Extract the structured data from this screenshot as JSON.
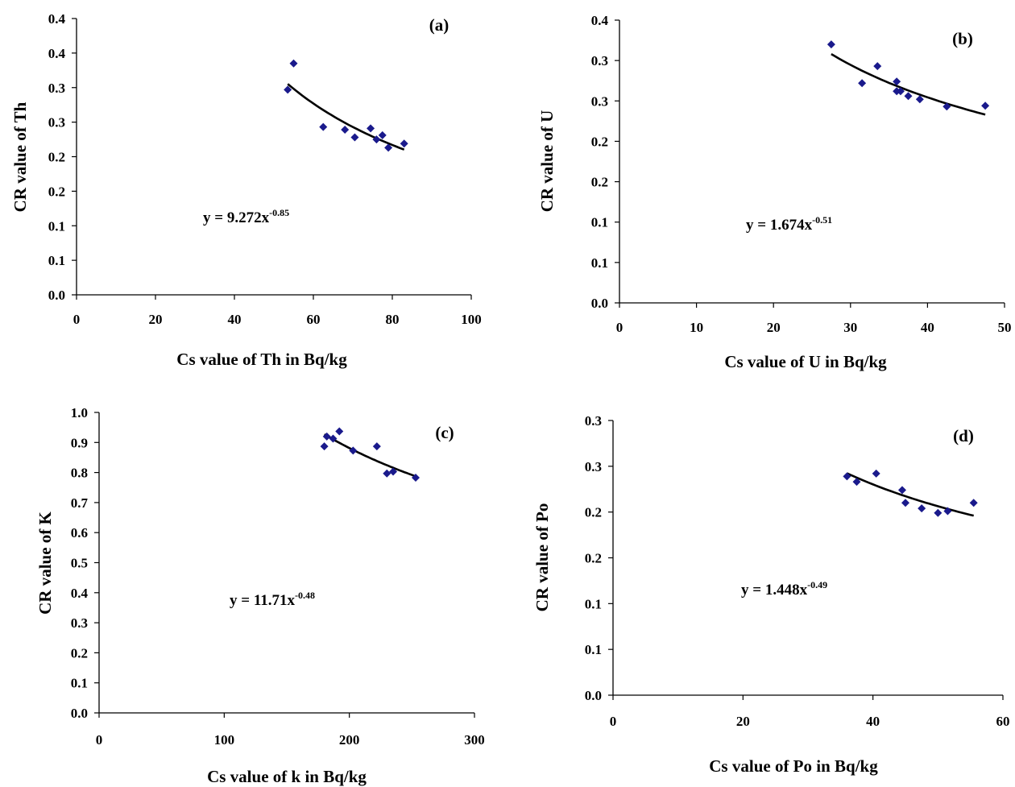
{
  "chart_data": [
    {
      "type": "scatter",
      "panel_label": "(a)",
      "xlabel": "Cs value of Th in Bq/kg",
      "ylabel": "CR value of Th",
      "xlim": [
        0,
        100
      ],
      "ylim": [
        0,
        0.4
      ],
      "xticks": [
        "0",
        "20",
        "40",
        "60",
        "80",
        "100"
      ],
      "yticks": [
        "0.0",
        "0.1",
        "0.1",
        "0.2",
        "0.2",
        "0.3",
        "0.3",
        "0.4",
        "0.4"
      ],
      "grid": false,
      "marker_color": "#1a1a8c",
      "trend": {
        "a": 9.272,
        "b": -0.85,
        "x_range": [
          53.5,
          83
        ],
        "equation": "y = 9.272x",
        "exponent": "-0.85"
      },
      "points": [
        {
          "x": 53.5,
          "y": 0.297
        },
        {
          "x": 55.0,
          "y": 0.335
        },
        {
          "x": 62.5,
          "y": 0.243
        },
        {
          "x": 68.0,
          "y": 0.239
        },
        {
          "x": 70.5,
          "y": 0.228
        },
        {
          "x": 74.5,
          "y": 0.241
        },
        {
          "x": 76.0,
          "y": 0.225
        },
        {
          "x": 77.5,
          "y": 0.231
        },
        {
          "x": 79.0,
          "y": 0.213
        },
        {
          "x": 83.0,
          "y": 0.219
        }
      ]
    },
    {
      "type": "scatter",
      "panel_label": "(b)",
      "xlabel": "Cs value of U in Bq/kg",
      "ylabel": "CR value of U",
      "xlim": [
        0,
        50
      ],
      "ylim": [
        0,
        0.35
      ],
      "xticks": [
        "0",
        "10",
        "20",
        "30",
        "40",
        "50"
      ],
      "yticks": [
        "0.0",
        "0.1",
        "0.1",
        "0.2",
        "0.2",
        "0.3",
        "0.3",
        "0.4"
      ],
      "grid": false,
      "marker_color": "#1a1a8c",
      "trend": {
        "a": 1.674,
        "b": -0.51,
        "x_range": [
          27.5,
          47.5
        ],
        "equation": "y = 1.674x",
        "exponent": "-0.51"
      },
      "points": [
        {
          "x": 27.5,
          "y": 0.32
        },
        {
          "x": 31.5,
          "y": 0.272
        },
        {
          "x": 33.5,
          "y": 0.293
        },
        {
          "x": 36.0,
          "y": 0.274
        },
        {
          "x": 36.5,
          "y": 0.262
        },
        {
          "x": 37.5,
          "y": 0.256
        },
        {
          "x": 39.0,
          "y": 0.252
        },
        {
          "x": 42.5,
          "y": 0.243
        },
        {
          "x": 47.5,
          "y": 0.244
        },
        {
          "x": 36.0,
          "y": 0.262
        }
      ]
    },
    {
      "type": "scatter",
      "panel_label": "(c)",
      "xlabel": "Cs value of k in Bq/kg",
      "ylabel": "CR value of K",
      "xlim": [
        0,
        300
      ],
      "ylim": [
        0,
        1.0
      ],
      "xticks": [
        "0",
        "100",
        "200",
        "300"
      ],
      "yticks": [
        "0.0",
        "0.1",
        "0.2",
        "0.3",
        "0.4",
        "0.5",
        "0.6",
        "0.7",
        "0.8",
        "0.9",
        "1.0"
      ],
      "grid": false,
      "marker_color": "#1a1a8c",
      "trend": {
        "a": 11.71,
        "b": -0.48,
        "x_range": [
          180,
          253
        ],
        "equation": "y = 11.71x",
        "exponent": "-0.48"
      },
      "points": [
        {
          "x": 180,
          "y": 0.887
        },
        {
          "x": 182,
          "y": 0.92
        },
        {
          "x": 187,
          "y": 0.913
        },
        {
          "x": 192,
          "y": 0.937
        },
        {
          "x": 203,
          "y": 0.873
        },
        {
          "x": 222,
          "y": 0.887
        },
        {
          "x": 230,
          "y": 0.797
        },
        {
          "x": 235,
          "y": 0.803
        },
        {
          "x": 253,
          "y": 0.783
        }
      ]
    },
    {
      "type": "scatter",
      "panel_label": "(d)",
      "xlabel": "Cs value of Po in Bq/kg",
      "ylabel": "CR value of Po",
      "xlim": [
        0,
        60
      ],
      "ylim": [
        0,
        0.3
      ],
      "xticks": [
        "0",
        "20",
        "40",
        "60"
      ],
      "yticks": [
        "0.0",
        "0.1",
        "0.1",
        "0.2",
        "0.2",
        "0.3",
        "0.3"
      ],
      "grid": false,
      "marker_color": "#1a1a8c",
      "trend": {
        "a": 1.448,
        "b": -0.49,
        "x_range": [
          36,
          55.5
        ],
        "equation": "y = 1.448x",
        "exponent": "-0.49"
      },
      "points": [
        {
          "x": 36.0,
          "y": 0.239
        },
        {
          "x": 37.5,
          "y": 0.233
        },
        {
          "x": 40.5,
          "y": 0.242
        },
        {
          "x": 44.5,
          "y": 0.224
        },
        {
          "x": 45.0,
          "y": 0.21
        },
        {
          "x": 47.5,
          "y": 0.204
        },
        {
          "x": 50.0,
          "y": 0.199
        },
        {
          "x": 51.5,
          "y": 0.201
        },
        {
          "x": 55.5,
          "y": 0.21
        }
      ]
    }
  ]
}
